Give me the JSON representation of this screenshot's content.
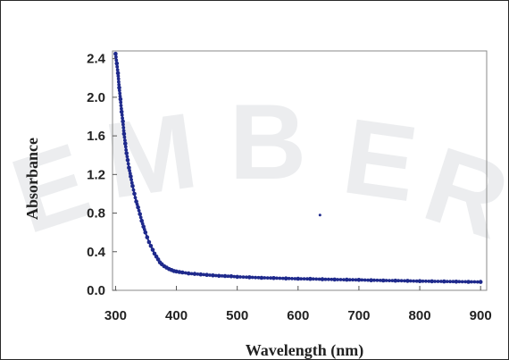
{
  "chart_data": {
    "type": "scatter",
    "title": "",
    "xlabel": "Wavelength (nm)",
    "ylabel": "Absorbance",
    "xlim": [
      295,
      910
    ],
    "ylim": [
      0,
      2.48
    ],
    "xticks": [
      "300",
      "400",
      "500",
      "600",
      "700",
      "800",
      "900"
    ],
    "yticks": [
      "0.0",
      "0.4",
      "0.8",
      "1.2",
      "1.6",
      "2.0",
      "2.4"
    ],
    "grid": false,
    "legend": "none",
    "marker_color": "#1f2a8c",
    "series": [
      {
        "x": [
          300,
          302,
          304,
          306,
          308,
          310,
          312,
          314,
          316,
          318,
          320,
          322,
          325,
          328,
          331,
          334,
          337,
          340,
          343,
          346,
          349,
          352,
          355,
          358,
          361,
          364,
          367,
          370,
          373,
          376,
          380,
          384,
          388,
          392,
          396,
          400,
          405,
          410,
          420,
          430,
          440,
          450,
          460,
          470,
          480,
          490,
          500,
          520,
          540,
          560,
          580,
          600,
          620,
          640,
          660,
          680,
          700,
          720,
          740,
          760,
          780,
          800,
          820,
          840,
          860,
          880,
          900
        ],
        "y": [
          2.45,
          2.35,
          2.25,
          2.1,
          1.98,
          1.85,
          1.75,
          1.62,
          1.52,
          1.42,
          1.35,
          1.27,
          1.18,
          1.08,
          1.0,
          0.92,
          0.86,
          0.79,
          0.72,
          0.66,
          0.6,
          0.55,
          0.5,
          0.46,
          0.42,
          0.38,
          0.35,
          0.32,
          0.29,
          0.27,
          0.25,
          0.235,
          0.22,
          0.21,
          0.2,
          0.195,
          0.19,
          0.185,
          0.175,
          0.17,
          0.165,
          0.16,
          0.155,
          0.15,
          0.148,
          0.145,
          0.14,
          0.135,
          0.13,
          0.127,
          0.123,
          0.12,
          0.118,
          0.115,
          0.112,
          0.11,
          0.108,
          0.105,
          0.102,
          0.1,
          0.098,
          0.095,
          0.093,
          0.092,
          0.09,
          0.088,
          0.087
        ]
      }
    ],
    "annotations": [
      {
        "x": 636,
        "y": 0.78
      }
    ]
  },
  "watermark": [
    "E",
    "M",
    "B",
    "E",
    "R"
  ]
}
